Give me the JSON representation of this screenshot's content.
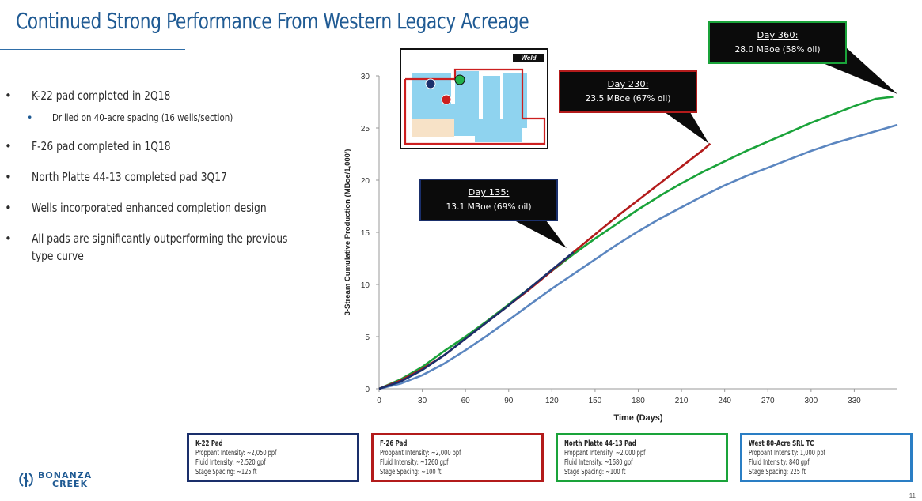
{
  "title": "Continued Strong Performance From Western Legacy Acreage",
  "bullets": [
    {
      "text": "K-22 pad completed in 2Q18",
      "level": 1
    },
    {
      "text": "Drilled on 40-acre spacing (16 wells/section)",
      "level": 2
    },
    {
      "text": "F-26 pad completed in 1Q18",
      "level": 1
    },
    {
      "text": "North Platte 44-13 completed pad 3Q17",
      "level": 1
    },
    {
      "text": "Wells incorporated enhanced completion design",
      "level": 1
    },
    {
      "text": "All pads are significantly outperforming the previous type curve",
      "level": 1
    }
  ],
  "bullet_glyph": "•",
  "map": {
    "label": "Weld"
  },
  "callouts": [
    {
      "title": "Day 135:",
      "text": "13.1 MBoe (69% oil)",
      "color": "#1a2f6b",
      "fill": "#0b0b0b"
    },
    {
      "title": "Day 230:",
      "text": "23.5 MBoe (67% oil)",
      "color": "#b31b1b",
      "fill": "#0b0b0b"
    },
    {
      "title": "Day 360:",
      "text": "28.0 MBoe (58% oil)",
      "color": "#1aa33a",
      "fill": "#0b0b0b"
    }
  ],
  "legend": [
    {
      "title": "K-22 Pad",
      "color": "#1a2f6b",
      "lines": [
        "Proppant Intensity: ~2,050 ppf",
        "Fluid Intensity: ~2,520 gpf",
        "Stage Spacing: ~125 ft"
      ]
    },
    {
      "title": "F-26 Pad",
      "color": "#b31b1b",
      "lines": [
        "Proppant Intensity: ~2,000 ppf",
        "Fluid Intensity: ~1260 gpf",
        "Stage Spacing: ~100 ft"
      ]
    },
    {
      "title": "North Platte 44-13 Pad",
      "color": "#1aa33a",
      "lines": [
        "Proppant Intensity: ~2,000 ppf",
        "Fluid Intensity: ~1680 gpf",
        "Stage Spacing:  ~100 ft"
      ]
    },
    {
      "title": "West 80-Acre SRL TC",
      "color": "#2a7ec4",
      "lines": [
        "Proppant Intensity: 1,000 ppf",
        "Fluid Intensity: 840 gpf",
        "Stage Spacing: 225 ft"
      ]
    }
  ],
  "logo": {
    "line1": "BONANZA",
    "line2": "CREEK"
  },
  "page_number": "11",
  "chart_data": {
    "type": "line",
    "title": "",
    "xlabel": "Time (Days)",
    "ylabel": "3-Stream Cumulative Production (MBoe/1,000')",
    "xlim": [
      0,
      360
    ],
    "ylim": [
      0,
      30
    ],
    "xticks": [
      0,
      30,
      60,
      90,
      120,
      150,
      180,
      210,
      240,
      270,
      300,
      330
    ],
    "yticks": [
      0,
      5,
      10,
      15,
      20,
      25,
      30
    ],
    "grid": false,
    "series": [
      {
        "name": "West 80-Acre SRL TC",
        "color": "#5b86c0",
        "x": [
          0,
          15,
          30,
          45,
          60,
          75,
          90,
          105,
          120,
          135,
          150,
          165,
          180,
          195,
          210,
          225,
          240,
          255,
          270,
          285,
          300,
          315,
          330,
          345,
          360
        ],
        "y": [
          0,
          0.5,
          1.3,
          2.4,
          3.7,
          5.1,
          6.6,
          8.1,
          9.6,
          11.0,
          12.4,
          13.8,
          15.1,
          16.3,
          17.4,
          18.5,
          19.5,
          20.4,
          21.2,
          22.0,
          22.8,
          23.5,
          24.1,
          24.7,
          25.3
        ]
      },
      {
        "name": "North Platte 44-13 Pad",
        "color": "#1aa33a",
        "x": [
          0,
          15,
          30,
          45,
          60,
          75,
          90,
          105,
          120,
          135,
          150,
          165,
          180,
          195,
          210,
          225,
          240,
          255,
          270,
          285,
          300,
          315,
          330,
          345,
          357
        ],
        "y": [
          0,
          0.9,
          2.1,
          3.6,
          5.0,
          6.5,
          8.1,
          9.7,
          11.3,
          12.9,
          14.4,
          15.8,
          17.2,
          18.5,
          19.7,
          20.8,
          21.8,
          22.8,
          23.7,
          24.6,
          25.5,
          26.3,
          27.1,
          27.8,
          28.0
        ]
      },
      {
        "name": "F-26 Pad",
        "color": "#b31b1b",
        "x": [
          0,
          15,
          30,
          45,
          60,
          75,
          90,
          105,
          120,
          135,
          150,
          165,
          180,
          195,
          210,
          225,
          230
        ],
        "y": [
          0,
          0.8,
          1.9,
          3.2,
          4.8,
          6.4,
          8.0,
          9.6,
          11.3,
          13.1,
          14.8,
          16.5,
          18.1,
          19.7,
          21.3,
          22.9,
          23.5
        ]
      },
      {
        "name": "K-22 Pad",
        "color": "#1a2f6b",
        "x": [
          0,
          15,
          30,
          45,
          60,
          75,
          90,
          105,
          120,
          135
        ],
        "y": [
          0,
          0.7,
          1.8,
          3.2,
          4.8,
          6.4,
          8.0,
          9.7,
          11.4,
          13.1
        ]
      }
    ]
  }
}
